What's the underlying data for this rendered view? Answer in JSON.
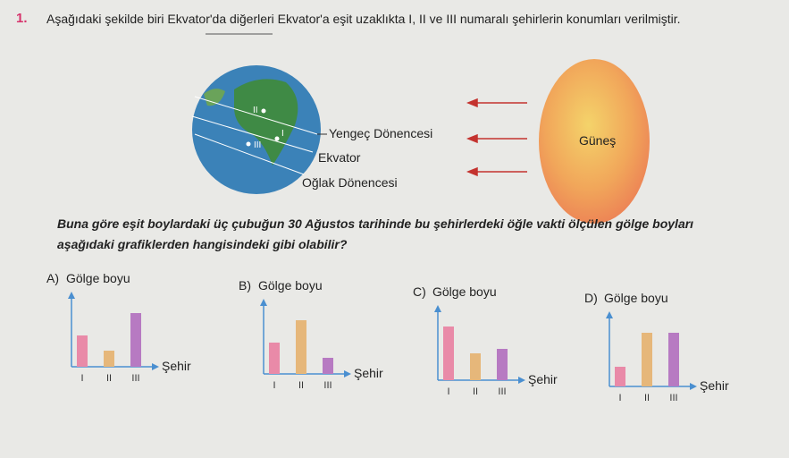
{
  "question": {
    "number": "1.",
    "text": "Aşağıdaki şekilde biri Ekvator'da diğerleri Ekvator'a eşit uzaklıkta I, II ve III numaralı şehirlerin konumları verilmiştir."
  },
  "figure": {
    "lines": [
      "Yengeç Dönencesi",
      "Ekvator",
      "Oğlak Dönencesi"
    ],
    "sun": "Güneş",
    "cities": [
      "II",
      "I",
      "III"
    ]
  },
  "prompt": [
    "Buna göre eşit boylardaki üç çubuğun 30 Ağustos tarihinde bu şehirlerdeki öğle vakti ölçülen gölge boyları",
    "aşağıdaki grafiklerden hangisindeki gibi olabilir?"
  ],
  "options": [
    {
      "letter": "A)",
      "y_label": "Gölge boyu",
      "x_label": "Şehir",
      "categories": [
        "I",
        "II",
        "III"
      ],
      "values": [
        35,
        18,
        60
      ],
      "colors": [
        "#e98aa8",
        "#e6b77a",
        "#b77ac2"
      ]
    },
    {
      "letter": "B)",
      "y_label": "Gölge boyu",
      "x_label": "Şehir",
      "categories": [
        "I",
        "II",
        "III"
      ],
      "values": [
        35,
        60,
        18
      ],
      "colors": [
        "#e98aa8",
        "#e6b77a",
        "#b77ac2"
      ]
    },
    {
      "letter": "C)",
      "y_label": "Gölge boyu",
      "x_label": "Şehir",
      "categories": [
        "I",
        "II",
        "III"
      ],
      "values": [
        60,
        30,
        35
      ],
      "colors": [
        "#e98aa8",
        "#e6b77a",
        "#b77ac2"
      ]
    },
    {
      "letter": "D)",
      "y_label": "Gölge boyu",
      "x_label": "Şehir",
      "categories": [
        "I",
        "II",
        "III"
      ],
      "values": [
        22,
        60,
        60
      ],
      "colors": [
        "#e98aa8",
        "#e6b77a",
        "#b77ac2"
      ]
    }
  ]
}
